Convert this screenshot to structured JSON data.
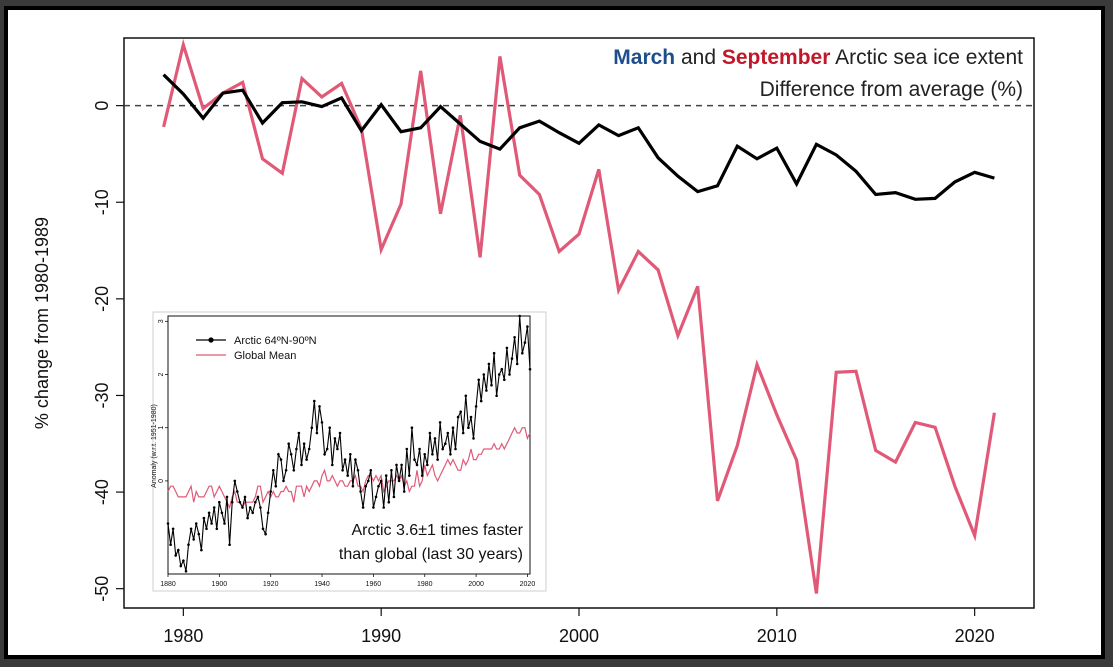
{
  "colors": {
    "march": "#1f4e8c",
    "september": "#c0182a",
    "september_line": "#e05a78",
    "march_line": "#000000",
    "global_line": "#e05a78"
  },
  "chart_data": [
    {
      "type": "line",
      "title_parts": [
        "March",
        " and ",
        "September",
        " Arctic sea ice extent"
      ],
      "subtitle": "Difference from average (%)",
      "xlabel": "",
      "ylabel": "% change from 1980-1989",
      "xlim": [
        1977,
        2023
      ],
      "ylim": [
        -52,
        7
      ],
      "xticks": [
        1980,
        1990,
        2000,
        2010,
        2020
      ],
      "yticks": [
        0,
        -10,
        -20,
        -30,
        -40,
        -50
      ],
      "reference_line": 0,
      "x": [
        1979,
        1980,
        1981,
        1982,
        1983,
        1984,
        1985,
        1986,
        1987,
        1988,
        1989,
        1990,
        1991,
        1992,
        1993,
        1994,
        1995,
        1996,
        1997,
        1998,
        1999,
        2000,
        2001,
        2002,
        2003,
        2004,
        2005,
        2006,
        2007,
        2008,
        2009,
        2010,
        2011,
        2012,
        2013,
        2014,
        2015,
        2016,
        2017,
        2018,
        2019,
        2020,
        2021
      ],
      "series": [
        {
          "name": "March",
          "values": [
            3.2,
            1.2,
            -1.3,
            1.3,
            1.6,
            -1.8,
            0.3,
            0.4,
            -0.1,
            0.8,
            -2.6,
            0.1,
            -2.7,
            -2.3,
            -0.1,
            -1.9,
            -3.7,
            -4.5,
            -2.3,
            -1.6,
            -2.8,
            -3.9,
            -2.0,
            -3.1,
            -2.3,
            -5.4,
            -7.3,
            -8.9,
            -8.3,
            -4.2,
            -5.5,
            -4.4,
            -8.1,
            -4.0,
            -5.1,
            -6.8,
            -9.2,
            -9.0,
            -9.7,
            -9.6,
            -7.9,
            -6.9,
            -7.5
          ]
        },
        {
          "name": "September",
          "values": [
            -2.2,
            6.3,
            -0.3,
            1.3,
            2.4,
            -5.5,
            -7.0,
            2.8,
            0.9,
            2.3,
            -2.4,
            -14.9,
            -10.2,
            3.6,
            -11.2,
            -1.0,
            -15.7,
            5.1,
            -7.2,
            -9.2,
            -15.1,
            -13.3,
            -6.6,
            -19.1,
            -15.1,
            -17.0,
            -23.8,
            -18.7,
            -40.9,
            -35.2,
            -26.8,
            -32.0,
            -36.7,
            -50.5,
            -27.6,
            -27.5,
            -35.7,
            -36.9,
            -32.8,
            -33.3,
            -39.4,
            -44.5,
            -31.8
          ]
        }
      ]
    },
    {
      "type": "line",
      "legend": [
        "Arctic 64ºN-90ºN",
        "Global Mean"
      ],
      "ylabel": "Anomaly (w.r.t. 1951-1980)",
      "xticks": [
        1880,
        1900,
        1920,
        1940,
        1960,
        1980,
        2000,
        2020
      ],
      "yticks": [
        0,
        1,
        2,
        3
      ],
      "xlim": [
        1880,
        2021
      ],
      "ylim": [
        -1.75,
        3.1
      ],
      "annotation": [
        "Arctic 3.6±1 times faster",
        "than global (last 30 years)"
      ],
      "x_start": 1880,
      "series": [
        {
          "name": "Arctic 64ºN-90ºN",
          "values": [
            -0.8,
            -1.2,
            -0.9,
            -1.4,
            -1.3,
            -1.6,
            -1.5,
            -1.7,
            -1.2,
            -0.9,
            -1.1,
            -0.8,
            -1.0,
            -1.3,
            -0.7,
            -0.9,
            -0.6,
            -0.8,
            -0.5,
            -0.9,
            -0.4,
            -0.6,
            -0.8,
            -0.3,
            -1.2,
            -0.4,
            0.0,
            -0.2,
            -0.4,
            -0.5,
            -0.3,
            -0.7,
            -0.5,
            -0.6,
            -0.4,
            -0.3,
            -0.5,
            -0.9,
            -1.0,
            -0.6,
            -0.2,
            0.2,
            -0.1,
            0.5,
            0.4,
            0.0,
            0.2,
            0.7,
            0.5,
            0.2,
            0.6,
            0.9,
            0.3,
            0.7,
            0.4,
            0.6,
            1.0,
            1.5,
            0.9,
            1.4,
            1.1,
            0.5,
            0.6,
            1.0,
            0.3,
            0.8,
            0.6,
            0.9,
            0.2,
            0.4,
            0.1,
            0.5,
            -0.1,
            0.4,
            0.2,
            -0.2,
            -0.5,
            -0.1,
            0.0,
            0.2,
            -0.5,
            -0.3,
            -0.1,
            0.0,
            -0.5,
            0.1,
            -0.4,
            0.2,
            -0.3,
            0.3,
            0.0,
            0.3,
            -0.2,
            0.6,
            0.1,
            1.0,
            0.4,
            0.3,
            0.6,
            0.1,
            0.5,
            0.3,
            0.9,
            0.5,
            0.8,
            0.4,
            1.1,
            0.6,
            0.7,
            0.9,
            0.5,
            1.0,
            0.6,
            1.2,
            1.3,
            0.9,
            1.6,
            1.0,
            1.2,
            0.8,
            1.4,
            1.9,
            1.5,
            2.0,
            1.7,
            2.2,
            1.8,
            2.4,
            1.6,
            2.0,
            2.1,
            1.9,
            2.5,
            2.0,
            2.3,
            2.7,
            2.2,
            3.1,
            2.4,
            2.6,
            2.9,
            2.1
          ]
        },
        {
          "name": "Global Mean",
          "values": [
            -0.2,
            -0.1,
            -0.1,
            -0.2,
            -0.3,
            -0.3,
            -0.3,
            -0.3,
            -0.2,
            -0.1,
            -0.4,
            -0.2,
            -0.3,
            -0.3,
            -0.3,
            -0.2,
            -0.1,
            -0.1,
            -0.3,
            -0.2,
            -0.1,
            -0.2,
            -0.3,
            -0.4,
            -0.5,
            -0.3,
            -0.2,
            -0.4,
            -0.4,
            -0.5,
            -0.4,
            -0.4,
            -0.4,
            -0.4,
            -0.3,
            -0.1,
            -0.1,
            -0.4,
            -0.3,
            -0.2,
            -0.3,
            -0.2,
            -0.3,
            -0.3,
            -0.2,
            -0.2,
            -0.1,
            -0.2,
            -0.2,
            -0.4,
            -0.1,
            -0.1,
            -0.1,
            -0.3,
            -0.1,
            -0.2,
            -0.1,
            0.0,
            0.0,
            -0.1,
            0.1,
            0.2,
            0.0,
            0.0,
            0.1,
            0.0,
            -0.1,
            0.0,
            0.0,
            -0.1,
            -0.1,
            0.0,
            0.0,
            0.1,
            -0.1,
            -0.1,
            -0.2,
            0.0,
            0.1,
            0.1,
            0.0,
            0.1,
            0.0,
            0.1,
            -0.2,
            -0.1,
            0.0,
            0.0,
            0.0,
            0.1,
            0.0,
            0.1,
            -0.1,
            0.0,
            -0.2,
            -0.1,
            -0.1,
            0.2,
            -0.1,
            0.0,
            0.3,
            0.1,
            0.2,
            0.3,
            0.1,
            0.0,
            0.1,
            0.2,
            0.3,
            0.4,
            0.3,
            0.4,
            0.3,
            0.2,
            0.2,
            0.4,
            0.3,
            0.4,
            0.6,
            0.4,
            0.4,
            0.5,
            0.5,
            0.6,
            0.6,
            0.6,
            0.6,
            0.7,
            0.6,
            0.6,
            0.7,
            0.6,
            0.7,
            0.8,
            0.9,
            1.0,
            0.9,
            0.9,
            1.0,
            1.0,
            0.8,
            0.9
          ]
        }
      ]
    }
  ]
}
